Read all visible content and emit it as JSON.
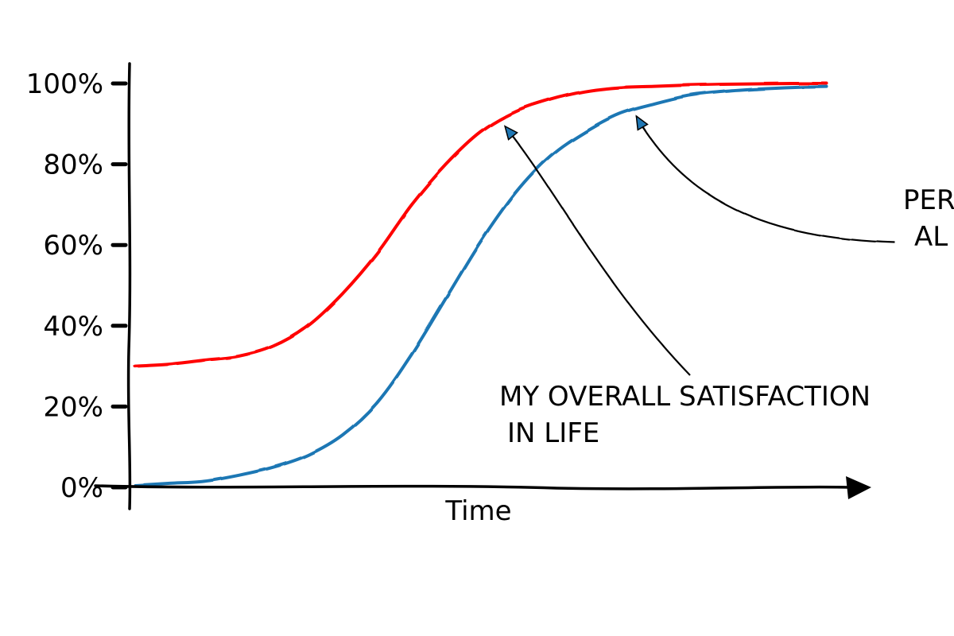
{
  "chart_data": {
    "type": "line",
    "xlabel": "Time",
    "ylabel": "",
    "ylim": [
      0,
      100
    ],
    "yticks": [
      "0%",
      "20%",
      "40%",
      "60%",
      "80%",
      "100%"
    ],
    "ytick_values": [
      0,
      20,
      40,
      60,
      80,
      100
    ],
    "x": [
      0,
      5,
      10,
      15,
      20,
      25,
      30,
      35,
      40,
      45,
      50,
      55,
      60,
      65,
      70,
      75,
      80,
      85,
      90,
      95,
      100
    ],
    "series": [
      {
        "name": "",
        "color": "#ff0000",
        "values": [
          30,
          30.5,
          31.5,
          32.5,
          35,
          40,
          48,
          58,
          70,
          80,
          88,
          93,
          96,
          98,
          99,
          99.3,
          99.6,
          99.8,
          99.9,
          100,
          100
        ]
      },
      {
        "name": "",
        "color": "#1f77b4",
        "values": [
          0.5,
          1,
          1.5,
          3,
          5,
          8,
          13,
          21,
          33,
          47,
          61,
          73,
          82,
          88,
          92.5,
          95,
          97,
          98,
          98.6,
          99,
          99.2
        ]
      }
    ],
    "annotations": [
      {
        "lines": [
          "MY OVERALL SATISFACTION",
          "IN LIFE"
        ],
        "target_series": 0,
        "target_x": 53
      },
      {
        "lines": [
          "PER",
          "AL"
        ],
        "target_series": 1,
        "target_x": 72
      }
    ]
  }
}
